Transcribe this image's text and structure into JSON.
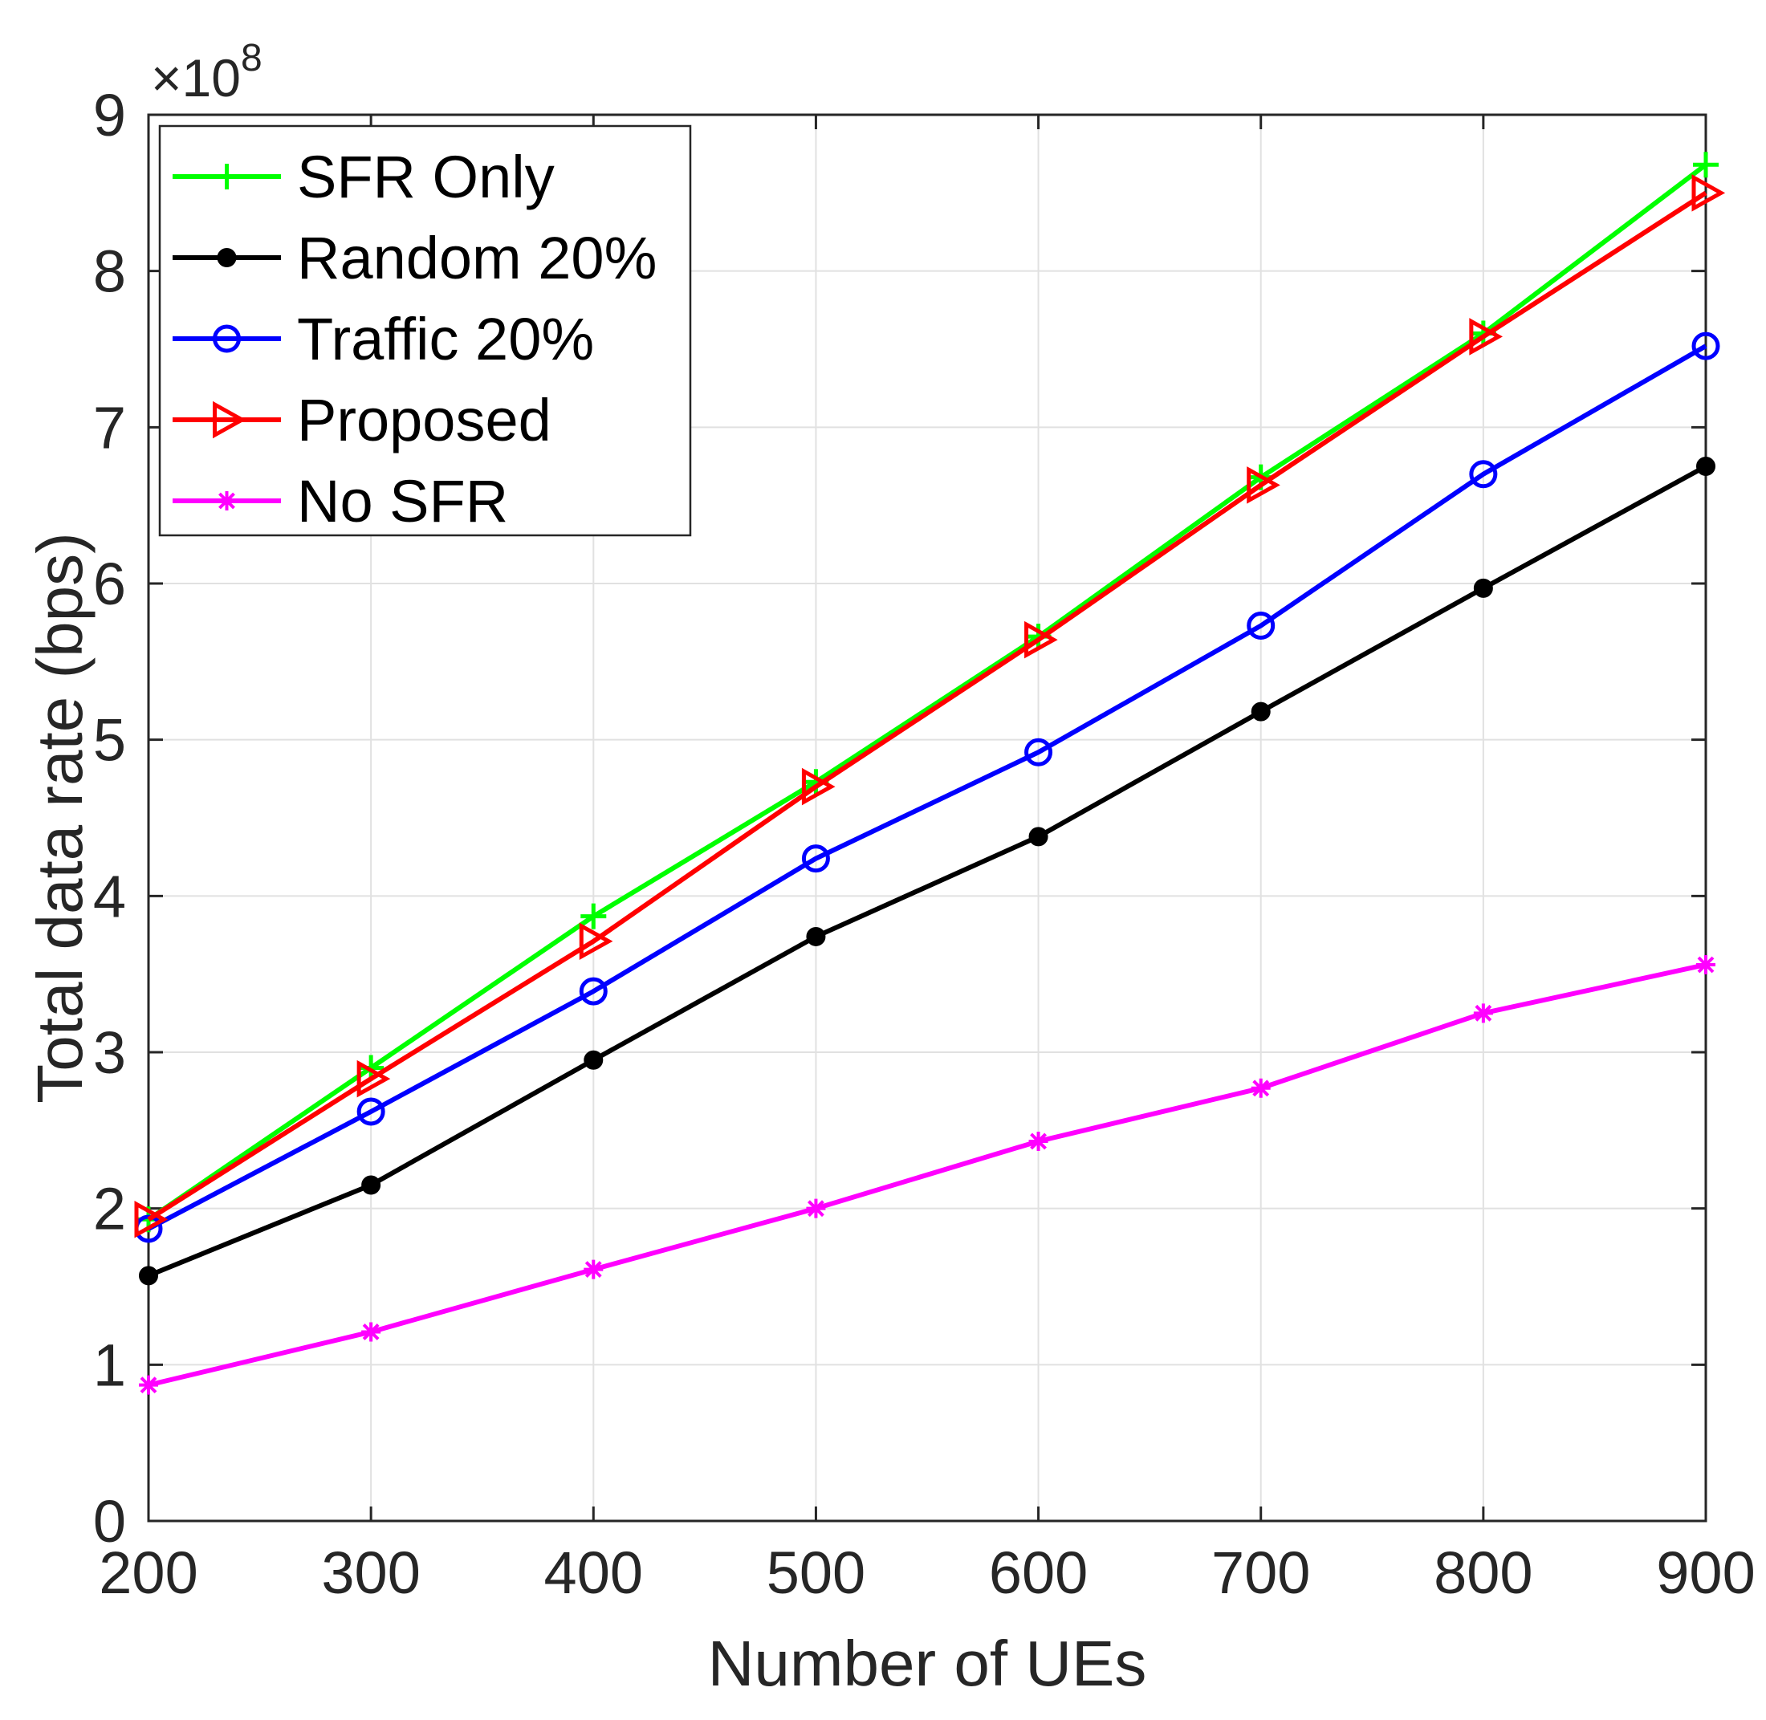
{
  "chart_data": {
    "type": "line",
    "title": "",
    "xlabel": "Number of UEs",
    "ylabel": "Total data rate (bps)",
    "y_multiplier_base": "×10",
    "y_multiplier_exponent": "8",
    "x": [
      200,
      300,
      400,
      500,
      600,
      700,
      800,
      900
    ],
    "xlim": [
      200,
      900
    ],
    "ylim": [
      0,
      9
    ],
    "xticks": [
      "200",
      "300",
      "400",
      "500",
      "600",
      "700",
      "800",
      "900"
    ],
    "yticks": [
      "0",
      "1",
      "2",
      "3",
      "4",
      "5",
      "6",
      "7",
      "8",
      "9"
    ],
    "grid": true,
    "legend_position": "top-left",
    "series": [
      {
        "name": "SFR Only",
        "color": "#00ff00",
        "marker": "plus",
        "values": [
          1.93,
          2.9,
          3.87,
          4.73,
          5.66,
          6.68,
          7.6,
          8.68
        ]
      },
      {
        "name": "Random 20%",
        "color": "#000000",
        "marker": "dot",
        "values": [
          1.57,
          2.15,
          2.95,
          3.74,
          4.38,
          5.18,
          5.97,
          6.75
        ]
      },
      {
        "name": "Traffic 20%",
        "color": "#0000ff",
        "marker": "circle",
        "values": [
          1.87,
          2.62,
          3.39,
          4.24,
          4.92,
          5.73,
          6.7,
          7.52
        ]
      },
      {
        "name": "Proposed",
        "color": "#ff0000",
        "marker": "triangle-right",
        "values": [
          1.93,
          2.83,
          3.71,
          4.7,
          5.64,
          6.63,
          7.58,
          8.5
        ]
      },
      {
        "name": "No SFR",
        "color": "#ff00ff",
        "marker": "star",
        "values": [
          0.87,
          1.21,
          1.61,
          2.0,
          2.43,
          2.77,
          3.25,
          3.56
        ]
      }
    ]
  }
}
